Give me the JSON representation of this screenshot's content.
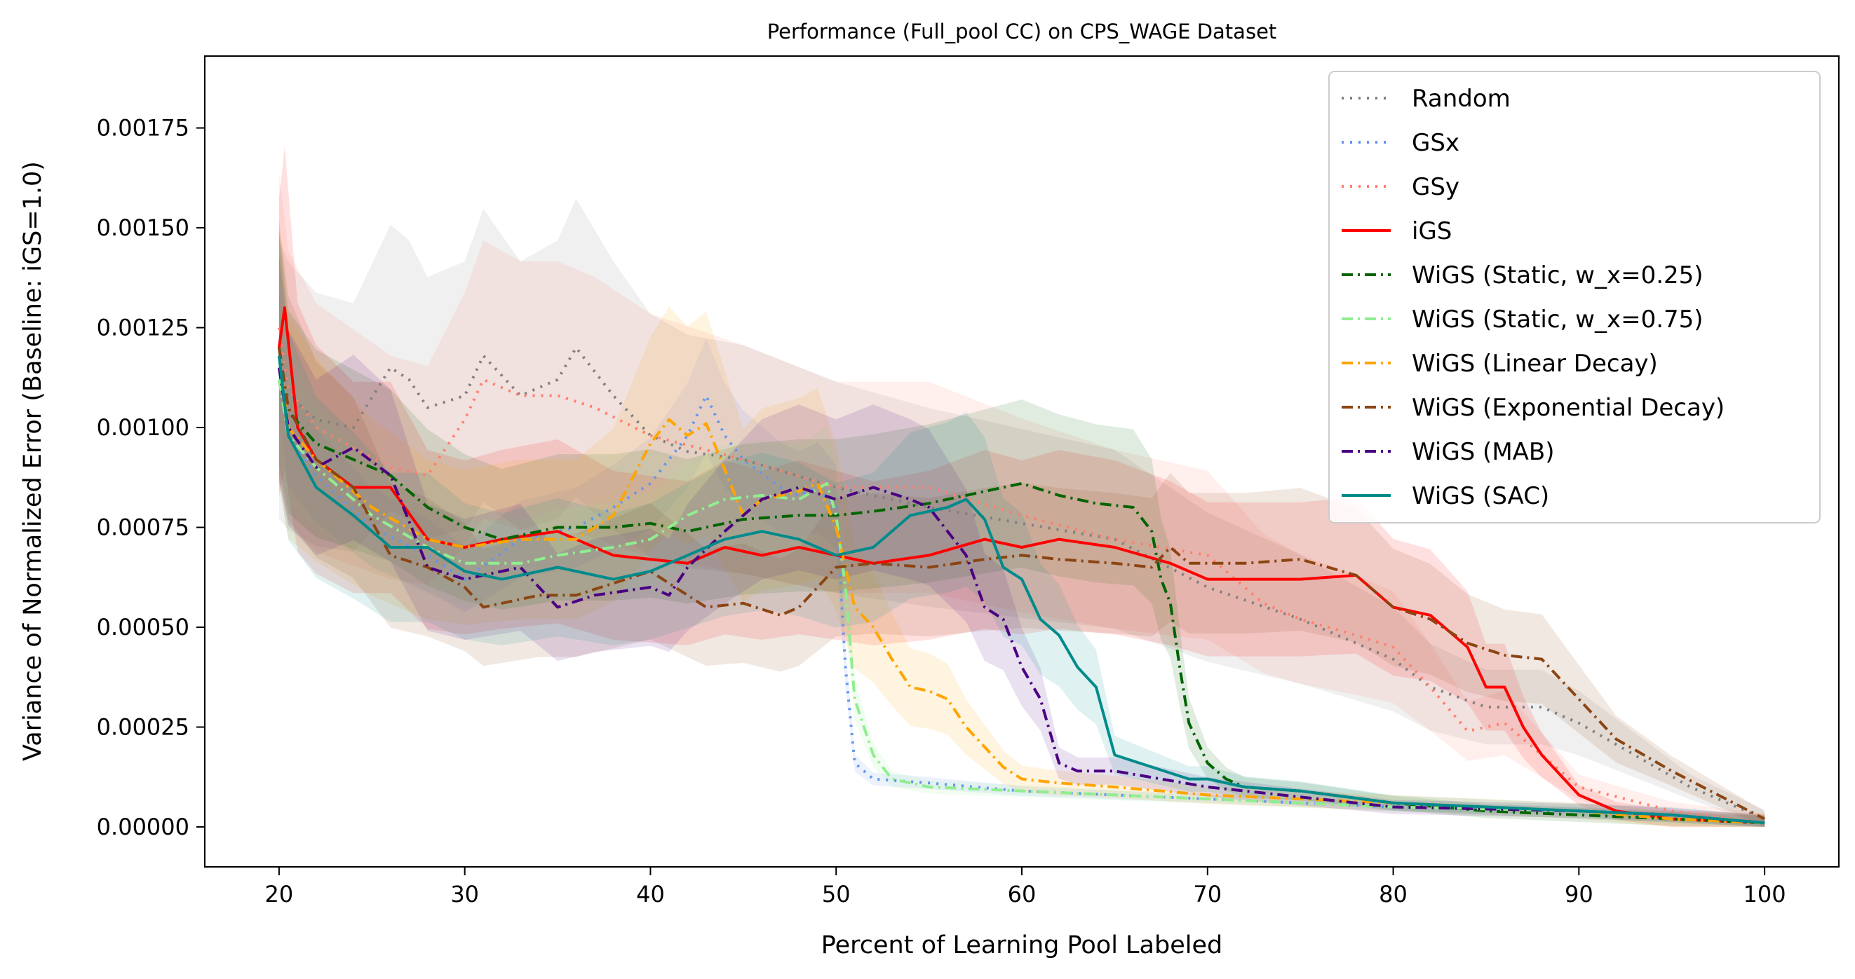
{
  "chart_data": {
    "type": "line",
    "title": "Performance (Full_pool CC) on CPS_WAGE Dataset",
    "xlabel": "Percent of Learning Pool Labeled",
    "ylabel": "Variance of Normalized Error (Baseline: iGS=1.0)",
    "xlim": [
      16,
      104
    ],
    "ylim": [
      -0.0001,
      0.00193
    ],
    "xticks": [
      20,
      30,
      40,
      50,
      60,
      70,
      80,
      90,
      100
    ],
    "xtick_labels": [
      "20",
      "30",
      "40",
      "50",
      "60",
      "70",
      "80",
      "90",
      "100"
    ],
    "yticks": [
      0,
      0.00025,
      0.0005,
      0.00075,
      0.001,
      0.00125,
      0.0015,
      0.00175
    ],
    "ytick_labels": [
      "0.00000",
      "0.00025",
      "0.00050",
      "0.00075",
      "0.00100",
      "0.00125",
      "0.00150",
      "0.00175"
    ],
    "grid": false,
    "legend_position": "top-right",
    "series": [
      {
        "name": "Random",
        "color": "#808080",
        "dash": "dotted",
        "band": 0.00028,
        "x": [
          20,
          20.5,
          22,
          24,
          26,
          27,
          28,
          30,
          31,
          33,
          35,
          36,
          38,
          40,
          42,
          45,
          50,
          55,
          60,
          65,
          70,
          75,
          80,
          82,
          85,
          88,
          90,
          93,
          96,
          100
        ],
        "y": [
          0.00112,
          0.00108,
          0.00102,
          0.001,
          0.00115,
          0.00112,
          0.00105,
          0.00108,
          0.00118,
          0.00108,
          0.00112,
          0.0012,
          0.00108,
          0.00098,
          0.00094,
          0.00092,
          0.00085,
          0.0008,
          0.00076,
          0.00072,
          0.0006,
          0.00052,
          0.00042,
          0.00035,
          0.0003,
          0.0003,
          0.00026,
          0.00018,
          0.0001,
          2e-05
        ]
      },
      {
        "name": "GSx",
        "color": "#6495ed",
        "dash": "dotted",
        "band": 0.00012,
        "x": [
          20,
          20.5,
          22,
          25,
          28,
          30,
          33,
          36,
          38,
          40,
          42,
          43,
          44,
          45,
          47,
          48,
          49,
          50,
          50.5,
          51,
          52,
          55,
          60,
          70,
          80,
          90,
          95,
          100
        ],
        "y": [
          0.00118,
          0.00098,
          0.00088,
          0.00075,
          0.00068,
          0.00062,
          0.00072,
          0.00075,
          0.0008,
          0.00086,
          0.00098,
          0.00108,
          0.00098,
          0.00092,
          0.00085,
          0.00083,
          0.00085,
          0.0008,
          0.0004,
          0.00016,
          0.00012,
          0.00011,
          9e-05,
          7e-05,
          5e-05,
          4e-05,
          3e-05,
          1e-05
        ]
      },
      {
        "name": "GSy",
        "color": "#ff7f6e",
        "dash": "dotted",
        "band": 0.00028,
        "x": [
          20,
          20.5,
          22,
          24,
          26,
          28,
          30,
          31,
          33,
          35,
          37,
          40,
          45,
          50,
          55,
          60,
          65,
          70,
          73,
          75,
          78,
          80,
          82,
          84,
          86,
          88,
          90,
          95,
          100
        ],
        "y": [
          0.00125,
          0.0011,
          0.001,
          0.00095,
          0.0009,
          0.00088,
          0.00102,
          0.00112,
          0.00108,
          0.00108,
          0.00105,
          0.00098,
          0.00092,
          0.00085,
          0.00085,
          0.00078,
          0.00072,
          0.00068,
          0.00056,
          0.00052,
          0.00048,
          0.00045,
          0.00035,
          0.00024,
          0.00026,
          0.00018,
          0.0001,
          4e-05,
          1e-05
        ]
      },
      {
        "name": "iGS",
        "color": "#ff0000",
        "dash": "solid",
        "band": 0.00028,
        "x": [
          20,
          20.3,
          21,
          22,
          24,
          26,
          28,
          30,
          32,
          35,
          38,
          40,
          42,
          44,
          46,
          48,
          50,
          52,
          55,
          58,
          60,
          62,
          65,
          68,
          70,
          73,
          75,
          78,
          80,
          82,
          84,
          85,
          86,
          87,
          88,
          90,
          92,
          95,
          100
        ],
        "y": [
          0.0012,
          0.0013,
          0.001,
          0.00092,
          0.00085,
          0.00085,
          0.00072,
          0.0007,
          0.00072,
          0.00074,
          0.00068,
          0.00067,
          0.00066,
          0.0007,
          0.00068,
          0.0007,
          0.00068,
          0.00066,
          0.00068,
          0.00072,
          0.0007,
          0.00072,
          0.0007,
          0.00066,
          0.00062,
          0.00062,
          0.00062,
          0.00063,
          0.00055,
          0.00053,
          0.00045,
          0.00035,
          0.00035,
          0.00025,
          0.00018,
          8e-05,
          4e-05,
          2e-05,
          1e-05
        ]
      },
      {
        "name": "WiGS (Static, w_x=0.25)",
        "color": "#006400",
        "dash": "dashdot",
        "band": 0.00022,
        "x": [
          20,
          20.5,
          22,
          24,
          26,
          28,
          30,
          32,
          35,
          38,
          40,
          42,
          45,
          48,
          50,
          52,
          55,
          58,
          60,
          62,
          64,
          66,
          67,
          67.5,
          68,
          68.5,
          69,
          70,
          71,
          72,
          75,
          80,
          85,
          90,
          95,
          100
        ],
        "y": [
          0.0012,
          0.00104,
          0.00096,
          0.00092,
          0.00088,
          0.0008,
          0.00075,
          0.00072,
          0.00075,
          0.00075,
          0.00076,
          0.00074,
          0.00077,
          0.00078,
          0.00078,
          0.00079,
          0.00081,
          0.00084,
          0.00086,
          0.00083,
          0.00081,
          0.0008,
          0.00074,
          0.00062,
          0.00056,
          0.0004,
          0.00026,
          0.00016,
          0.00012,
          0.0001,
          9e-05,
          6e-05,
          4e-05,
          3e-05,
          2e-05,
          1e-05
        ]
      },
      {
        "name": "WiGS (Static, w_x=0.75)",
        "color": "#90ee90",
        "dash": "dashdot",
        "band": 0.00015,
        "x": [
          20,
          20.5,
          22,
          25,
          28,
          30,
          33,
          35,
          38,
          40,
          42,
          44,
          46,
          48,
          49.5,
          50,
          50.5,
          51,
          52,
          53,
          55,
          60,
          70,
          80,
          90,
          95,
          100
        ],
        "y": [
          0.00112,
          0.00098,
          0.0009,
          0.00078,
          0.0007,
          0.00066,
          0.00066,
          0.00068,
          0.0007,
          0.00072,
          0.00078,
          0.00082,
          0.00083,
          0.00082,
          0.00086,
          0.00078,
          0.0006,
          0.00032,
          0.00018,
          0.00012,
          0.0001,
          9e-05,
          7e-05,
          5e-05,
          4e-05,
          2e-05,
          1e-05
        ]
      },
      {
        "name": "WiGS (Linear Decay)",
        "color": "#ffa500",
        "dash": "dashdot",
        "band": 0.00025,
        "x": [
          20,
          20.5,
          22,
          25,
          28,
          30,
          33,
          36,
          38,
          40,
          41,
          42,
          43,
          45,
          46,
          48,
          49,
          50,
          51,
          52,
          53,
          54,
          55,
          56,
          57,
          58,
          59,
          60,
          62,
          65,
          70,
          80,
          90,
          95,
          100
        ],
        "y": [
          0.00118,
          0.001,
          0.00092,
          0.0008,
          0.00072,
          0.0007,
          0.00072,
          0.00072,
          0.00078,
          0.00096,
          0.00102,
          0.00098,
          0.00101,
          0.00078,
          0.00082,
          0.00084,
          0.00086,
          0.00075,
          0.00055,
          0.0005,
          0.00042,
          0.00035,
          0.00034,
          0.00032,
          0.00025,
          0.0002,
          0.00015,
          0.00012,
          0.00011,
          0.0001,
          8e-05,
          6e-05,
          4e-05,
          2e-05,
          1e-05
        ]
      },
      {
        "name": "WiGS (Exponential Decay)",
        "color": "#8b4513",
        "dash": "dashdot",
        "band": 0.00024,
        "x": [
          20,
          20.5,
          22,
          24,
          26,
          28,
          30,
          31,
          34,
          36,
          40,
          43,
          45,
          47,
          48,
          50,
          52,
          55,
          58,
          60,
          62,
          65,
          67,
          68,
          69,
          70,
          72,
          75,
          78,
          80,
          82,
          84,
          86,
          88,
          90,
          92,
          95,
          100
        ],
        "y": [
          0.0012,
          0.00105,
          0.00092,
          0.00085,
          0.00068,
          0.00065,
          0.0006,
          0.00055,
          0.00058,
          0.00058,
          0.00064,
          0.00055,
          0.00056,
          0.00053,
          0.00055,
          0.00065,
          0.00066,
          0.00065,
          0.00067,
          0.00068,
          0.00067,
          0.00066,
          0.00065,
          0.0007,
          0.00066,
          0.00066,
          0.00066,
          0.00067,
          0.00063,
          0.00055,
          0.00052,
          0.00046,
          0.00043,
          0.00042,
          0.00032,
          0.00022,
          0.00014,
          2e-05
        ]
      },
      {
        "name": "WiGS (MAB)",
        "color": "#4b0082",
        "dash": "dashdot",
        "band": 0.00022,
        "x": [
          20,
          20.5,
          22,
          24,
          26,
          28,
          30,
          33,
          35,
          37,
          40,
          41,
          42,
          44,
          46,
          48,
          50,
          52,
          54,
          55,
          57,
          58,
          59,
          60,
          61,
          62,
          63,
          65,
          70,
          80,
          90,
          95,
          100
        ],
        "y": [
          0.00115,
          0.001,
          0.0009,
          0.00095,
          0.00088,
          0.00065,
          0.00062,
          0.00065,
          0.00055,
          0.00058,
          0.0006,
          0.00058,
          0.00065,
          0.00074,
          0.00082,
          0.00085,
          0.00082,
          0.00085,
          0.00082,
          0.0008,
          0.00068,
          0.00055,
          0.00052,
          0.0004,
          0.00032,
          0.00016,
          0.00014,
          0.00014,
          0.0001,
          5e-05,
          4e-05,
          3e-05,
          1e-05
        ]
      },
      {
        "name": "WiGS (SAC)",
        "color": "#008b8b",
        "dash": "solid",
        "band": 0.00024,
        "x": [
          20,
          20.5,
          22,
          24,
          26,
          28,
          30,
          32,
          35,
          38,
          40,
          42,
          44,
          46,
          48,
          50,
          52,
          54,
          56,
          57,
          58,
          59,
          60,
          61,
          62,
          63,
          64,
          65,
          67,
          69,
          70,
          72,
          75,
          80,
          90,
          95,
          100
        ],
        "y": [
          0.00118,
          0.00098,
          0.00085,
          0.00078,
          0.0007,
          0.0007,
          0.00064,
          0.00062,
          0.00065,
          0.00062,
          0.00064,
          0.00068,
          0.00072,
          0.00074,
          0.00072,
          0.00068,
          0.0007,
          0.00078,
          0.0008,
          0.00082,
          0.00077,
          0.00065,
          0.00062,
          0.00052,
          0.00048,
          0.0004,
          0.00035,
          0.00018,
          0.00015,
          0.00012,
          0.00012,
          0.0001,
          9e-05,
          6e-05,
          4e-05,
          3e-05,
          1e-05
        ]
      }
    ]
  }
}
